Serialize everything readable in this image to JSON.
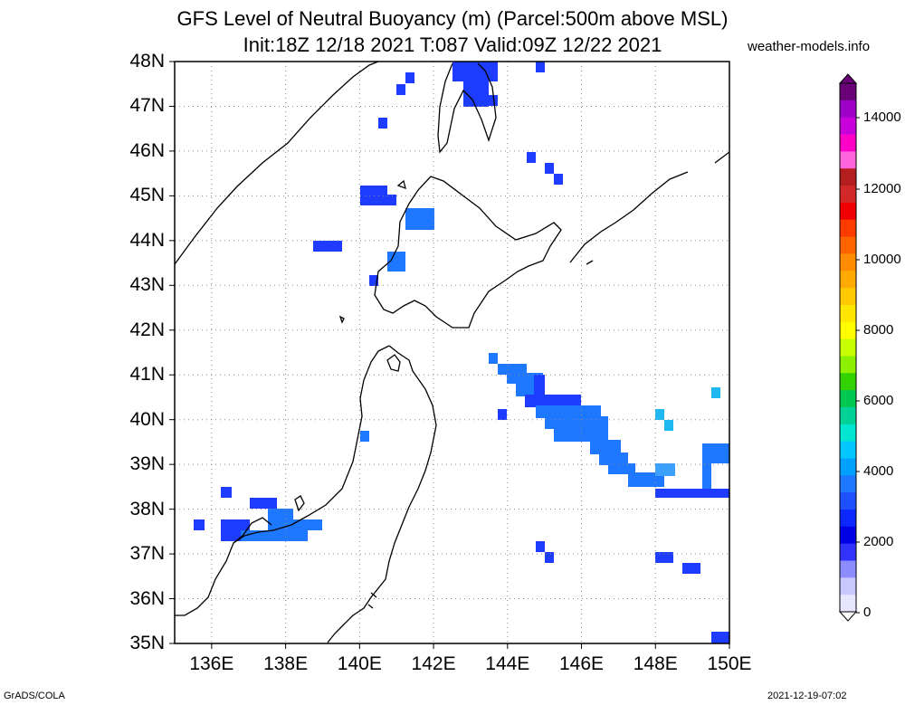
{
  "header": {
    "title_line1": "GFS Level of Neutral Buoyancy (m) (Parcel:500m above MSL)",
    "title_line2": "Init:18Z 12/18 2021 T:087 Valid:09Z 12/22 2021",
    "site": "weather-models.info"
  },
  "map": {
    "lat_labels": [
      "48N",
      "47N",
      "46N",
      "45N",
      "44N",
      "43N",
      "42N",
      "41N",
      "40N",
      "39N",
      "38N",
      "37N",
      "36N",
      "35N"
    ],
    "lon_labels": [
      "136E",
      "138E",
      "140E",
      "142E",
      "144E",
      "146E",
      "148E",
      "150E"
    ],
    "lat_range": [
      35,
      48
    ],
    "lon_range": [
      135,
      150
    ]
  },
  "colorbar": {
    "labels": [
      "14000",
      "12000",
      "10000",
      "8000",
      "6000",
      "4000",
      "2000",
      "0"
    ],
    "colors": [
      "#6a0078",
      "#9e00c8",
      "#c800dc",
      "#ff00c8",
      "#ff64dc",
      "#b41e1e",
      "#d22828",
      "#f00000",
      "#ff3c00",
      "#ff6400",
      "#ff8c00",
      "#ffaa00",
      "#ffc800",
      "#ffe600",
      "#ffff00",
      "#c8ff00",
      "#8cf000",
      "#32d200",
      "#00c850",
      "#00d296",
      "#00e6d2",
      "#00c8ff",
      "#00a0ff",
      "#1e78ff",
      "#1e50ff",
      "#0a28ff",
      "#0000e6",
      "#3232ff",
      "#8c8cff",
      "#c8c8ff",
      "#e6e6ff"
    ]
  },
  "footer": {
    "left": "GrADS/COLA",
    "right": "2021-12-19-07:02"
  }
}
